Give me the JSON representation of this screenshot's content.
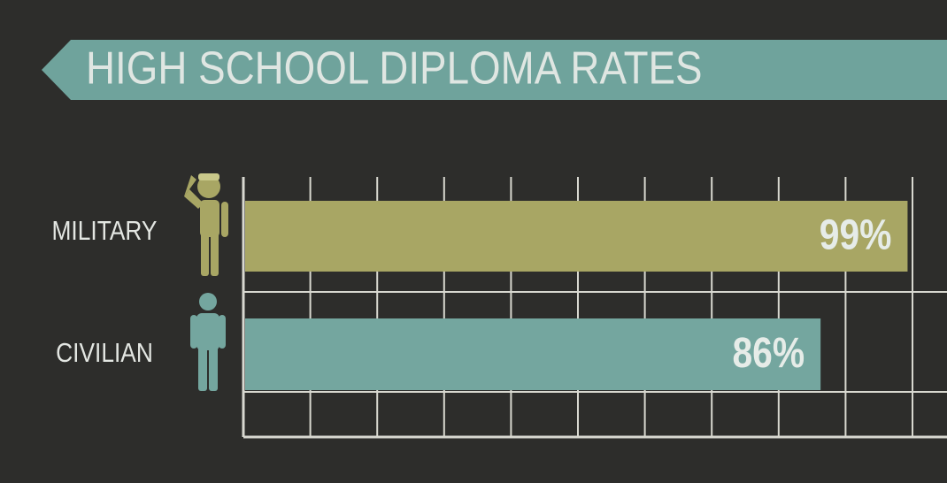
{
  "chart_data": {
    "type": "hbar",
    "title": "HIGH SCHOOL DIPLOMA RATES",
    "categories": [
      "MILITARY",
      "CIVILIAN"
    ],
    "values": [
      99,
      86
    ],
    "value_labels": [
      "99%",
      "86%"
    ],
    "colors": [
      "#a8a664",
      "#74a69f"
    ],
    "xlim": [
      0,
      100
    ],
    "xticks": [
      0,
      10,
      20,
      30,
      40,
      50,
      60,
      70,
      80,
      90,
      100
    ],
    "grid": true
  }
}
